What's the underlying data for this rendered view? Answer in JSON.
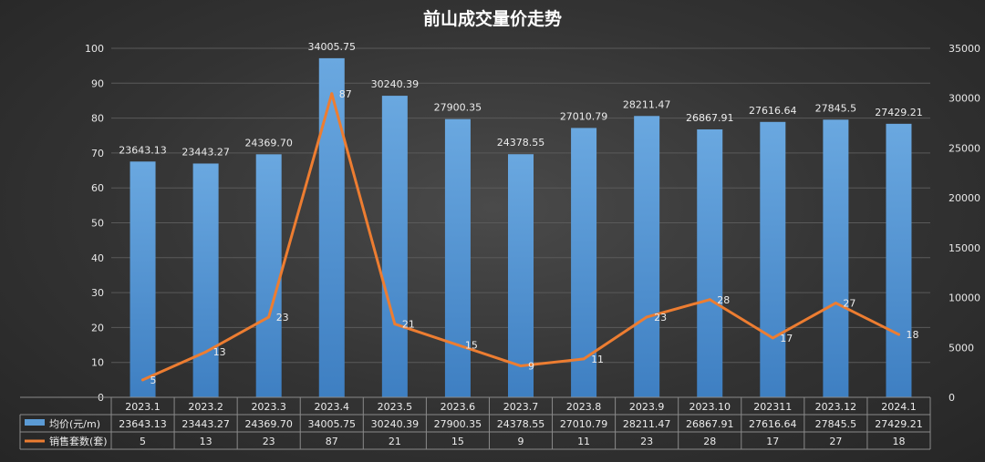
{
  "chart_data": {
    "type": "bar",
    "title": "前山成交量价走势",
    "categories": [
      "2023.1",
      "2023.2",
      "2023.3",
      "2023.4",
      "2023.5",
      "2023.6",
      "2023.7",
      "2023.8",
      "2023.9",
      "2023.10",
      "202311",
      "2023.12",
      "2024.1"
    ],
    "series": [
      {
        "name": "均价(元/m)",
        "type": "bar",
        "axis": "right",
        "values": [
          23643.13,
          23443.27,
          24369.7,
          34005.75,
          30240.39,
          27900.35,
          24378.55,
          27010.79,
          28211.47,
          26867.91,
          27616.64,
          27845.5,
          27429.21
        ],
        "labels": [
          "23643.13",
          "23443.27",
          "24369.70",
          "34005.75",
          "30240.39",
          "27900.35",
          "24378.55",
          "27010.79",
          "28211.47",
          "26867.91",
          "27616.64",
          "27845.5",
          "27429.21"
        ],
        "color": "#5b9bd5"
      },
      {
        "name": "销售套数(套)",
        "type": "line",
        "axis": "left",
        "values": [
          5,
          13,
          23,
          87,
          21,
          15,
          9,
          11,
          23,
          28,
          17,
          27,
          18
        ],
        "labels": [
          "5",
          "13",
          "23",
          "87",
          "21",
          "15",
          "9",
          "11",
          "23",
          "28",
          "17",
          "27",
          "18"
        ],
        "color": "#ed7d31"
      }
    ],
    "y_left": {
      "min": 0,
      "max": 100,
      "ticks": [
        "0",
        "10",
        "20",
        "30",
        "40",
        "50",
        "60",
        "70",
        "80",
        "90",
        "100"
      ]
    },
    "y_right": {
      "min": 0,
      "max": 35000,
      "ticks": [
        "0",
        "5000",
        "10000",
        "15000",
        "20000",
        "25000",
        "30000",
        "35000"
      ]
    },
    "legend": "data-table-below"
  }
}
